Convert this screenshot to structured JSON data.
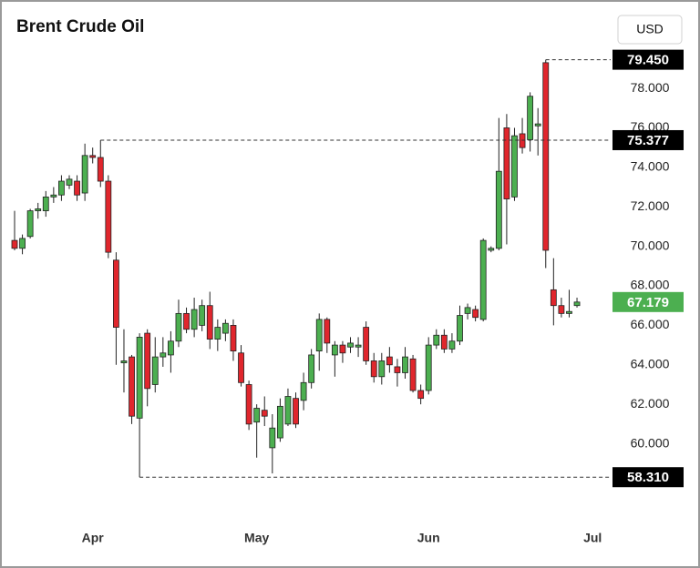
{
  "ui": {
    "currency_button": "USD"
  },
  "chart_data": {
    "type": "candlestick",
    "title": "Brent Crude Oil",
    "categories": [
      null,
      null,
      null,
      null,
      null,
      null,
      null,
      null,
      null,
      null,
      "Apr",
      null,
      null,
      null,
      null,
      null,
      null,
      null,
      null,
      null,
      null,
      null,
      null,
      null,
      null,
      null,
      null,
      null,
      null,
      null,
      null,
      "May",
      null,
      null,
      null,
      null,
      null,
      null,
      null,
      null,
      null,
      null,
      null,
      null,
      null,
      null,
      null,
      null,
      null,
      null,
      null,
      null,
      null,
      "Jun",
      null,
      null,
      null,
      null,
      null,
      null,
      null,
      null,
      null,
      null,
      null,
      null,
      null,
      null,
      null,
      null,
      null,
      null,
      null,
      null,
      "Jul"
    ],
    "open": [
      70.3,
      69.9,
      70.5,
      71.8,
      71.8,
      72.5,
      72.6,
      73.1,
      73.3,
      72.7,
      74.6,
      74.5,
      73.3,
      69.3,
      64.1,
      64.4,
      61.3,
      65.6,
      63.0,
      64.4,
      64.5,
      65.2,
      66.6,
      65.8,
      66.0,
      67.0,
      65.3,
      65.6,
      66.0,
      64.6,
      63.0,
      61.1,
      61.7,
      59.8,
      60.3,
      61.0,
      62.3,
      62.2,
      63.1,
      64.7,
      66.3,
      64.5,
      65.0,
      64.9,
      64.9,
      65.9,
      64.2,
      63.4,
      64.4,
      63.9,
      63.6,
      64.3,
      62.7,
      62.7,
      65.0,
      65.5,
      64.8,
      65.2,
      66.6,
      66.8,
      66.3,
      69.8,
      69.9,
      76.0,
      72.5,
      75.7,
      75.4,
      76.1,
      79.3,
      67.8,
      67.0,
      66.6,
      67.0,
      null,
      null
    ],
    "high": [
      71.8,
      70.6,
      71.9,
      72.2,
      72.8,
      73.0,
      73.6,
      73.6,
      73.6,
      75.2,
      75.0,
      75.377,
      73.6,
      69.7,
      65.8,
      64.5,
      65.6,
      65.8,
      65.4,
      65.4,
      65.7,
      67.3,
      66.9,
      67.4,
      67.3,
      67.7,
      66.3,
      66.3,
      66.3,
      65.0,
      63.2,
      62.0,
      62.4,
      61.5,
      62.3,
      62.8,
      62.6,
      63.6,
      64.8,
      66.6,
      66.4,
      65.2,
      65.2,
      65.4,
      65.4,
      66.2,
      64.6,
      64.6,
      64.9,
      64.3,
      64.9,
      64.5,
      63.0,
      65.4,
      65.8,
      65.8,
      65.6,
      67.0,
      67.1,
      67.0,
      70.4,
      70.0,
      76.5,
      76.7,
      76.0,
      76.5,
      77.8,
      77.0,
      79.45,
      69.4,
      67.4,
      67.8,
      67.4,
      null,
      null
    ],
    "low": [
      69.8,
      69.6,
      70.4,
      71.4,
      71.5,
      72.2,
      72.3,
      72.9,
      72.3,
      72.3,
      74.2,
      73.0,
      69.4,
      64.0,
      62.6,
      61.0,
      58.31,
      61.9,
      62.6,
      63.9,
      63.6,
      64.9,
      65.6,
      65.4,
      65.7,
      64.8,
      64.7,
      65.2,
      64.2,
      62.9,
      60.7,
      59.3,
      60.9,
      58.5,
      60.1,
      60.9,
      60.8,
      61.7,
      62.8,
      63.7,
      64.6,
      63.4,
      64.1,
      64.6,
      64.4,
      64.0,
      63.1,
      63.0,
      63.6,
      62.9,
      63.3,
      62.6,
      62.0,
      62.5,
      64.8,
      64.6,
      64.6,
      65.0,
      66.3,
      66.2,
      66.2,
      69.7,
      69.8,
      70.1,
      72.3,
      74.7,
      74.8,
      74.6,
      68.9,
      66.0,
      66.4,
      66.4,
      66.9,
      null,
      null
    ],
    "close": [
      69.9,
      70.4,
      71.8,
      71.9,
      72.5,
      72.6,
      73.3,
      73.4,
      72.6,
      74.6,
      74.5,
      73.3,
      69.7,
      65.9,
      64.2,
      61.4,
      65.4,
      62.8,
      64.4,
      64.6,
      65.2,
      66.6,
      65.8,
      66.8,
      67.0,
      65.3,
      65.9,
      66.1,
      64.7,
      63.1,
      61.0,
      61.8,
      61.4,
      60.8,
      61.9,
      62.4,
      61.0,
      63.1,
      64.5,
      66.3,
      65.1,
      65.0,
      64.6,
      65.1,
      65.0,
      64.2,
      63.4,
      64.2,
      64.0,
      63.6,
      64.4,
      62.7,
      62.3,
      65.0,
      65.5,
      64.8,
      65.2,
      66.5,
      66.9,
      66.4,
      70.3,
      69.9,
      73.8,
      72.4,
      75.6,
      75.0,
      77.6,
      76.2,
      69.8,
      67.0,
      66.6,
      66.7,
      67.179,
      null,
      null
    ],
    "up_color": "#4caf50",
    "down_color": "#e0262d",
    "ylim": [
      56.2,
      80.4
    ],
    "yticks": [
      {
        "value": 60,
        "label": "60.000"
      },
      {
        "value": 62,
        "label": "62.000"
      },
      {
        "value": 64,
        "label": "64.000"
      },
      {
        "value": 66,
        "label": "66.000"
      },
      {
        "value": 68,
        "label": "68.000"
      },
      {
        "value": 70,
        "label": "70.000"
      },
      {
        "value": 72,
        "label": "72.000"
      },
      {
        "value": 74,
        "label": "74.000"
      },
      {
        "value": 76,
        "label": "76.000"
      },
      {
        "value": 78,
        "label": "78.000"
      }
    ],
    "price_lines": [
      {
        "value": 79.45,
        "label": "79.450"
      },
      {
        "value": 75.377,
        "label": "75.377"
      },
      {
        "value": 58.31,
        "label": "58.310"
      }
    ],
    "last_price": {
      "value": 67.179,
      "label": "67.179",
      "color": "#4caf50"
    }
  }
}
